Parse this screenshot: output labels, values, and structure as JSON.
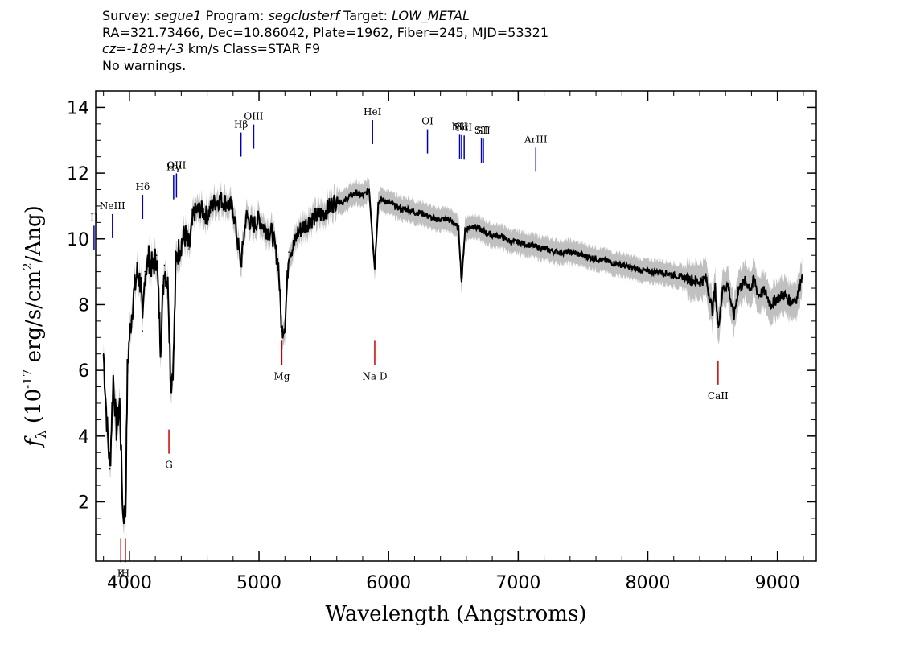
{
  "header": {
    "survey_label": "Survey:",
    "survey": "segue1",
    "program_label": "Program:",
    "program": "segclusterf",
    "target_label": "Target:",
    "target": "LOW_METAL",
    "line2": "RA=321.73466, Dec=10.86042, Plate=1962, Fiber=245, MJD=53321",
    "cz_label": "cz=",
    "cz_value": "-189+/-3",
    "cz_rest": " km/s Class=STAR F9",
    "line4": "No warnings."
  },
  "chart_data": {
    "type": "line",
    "xlabel": "Wavelength (Angstroms)",
    "ylabel_main": "f",
    "ylabel_sub": "λ",
    "ylabel_rest": " (10",
    "ylabel_exp": "-17",
    "ylabel_units": " erg/s/cm",
    "ylabel_exp2": "2",
    "ylabel_tail": "/Ang)",
    "xlim": [
      3740,
      9300
    ],
    "ylim": [
      0.2,
      14.5
    ],
    "xticks": [
      4000,
      5000,
      6000,
      7000,
      8000,
      9000
    ],
    "xtick_labels": [
      "4000",
      "5000",
      "6000",
      "7000",
      "8000",
      "9000"
    ],
    "yticks": [
      2,
      4,
      6,
      8,
      10,
      12,
      14
    ],
    "ytick_labels": [
      "2",
      "4",
      "6",
      "8",
      "10",
      "12",
      "14"
    ],
    "series": [
      {
        "color": "#000000",
        "points": [
          [
            3800,
            6.5
          ],
          [
            3825,
            4.5
          ],
          [
            3850,
            3.0
          ],
          [
            3875,
            5.8
          ],
          [
            3900,
            4.2
          ],
          [
            3925,
            5.0
          ],
          [
            3950,
            1.6
          ],
          [
            3970,
            1.7
          ],
          [
            3985,
            6.0
          ],
          [
            4000,
            7.0
          ],
          [
            4030,
            8.2
          ],
          [
            4060,
            9.0
          ],
          [
            4090,
            8.6
          ],
          [
            4101,
            7.2
          ],
          [
            4120,
            9.0
          ],
          [
            4150,
            9.4
          ],
          [
            4180,
            9.1
          ],
          [
            4210,
            9.5
          ],
          [
            4240,
            6.8
          ],
          [
            4270,
            9.2
          ],
          [
            4300,
            8.5
          ],
          [
            4320,
            5.5
          ],
          [
            4340,
            6.3
          ],
          [
            4360,
            9.4
          ],
          [
            4400,
            9.9
          ],
          [
            4430,
            10.1
          ],
          [
            4460,
            9.7
          ],
          [
            4500,
            10.8
          ],
          [
            4550,
            10.9
          ],
          [
            4600,
            10.7
          ],
          [
            4650,
            11.1
          ],
          [
            4700,
            11.2
          ],
          [
            4750,
            11.1
          ],
          [
            4800,
            10.9
          ],
          [
            4861,
            9.2
          ],
          [
            4900,
            10.7
          ],
          [
            4950,
            10.4
          ],
          [
            5000,
            10.6
          ],
          [
            5050,
            10.3
          ],
          [
            5100,
            10.2
          ],
          [
            5150,
            9.2
          ],
          [
            5175,
            7.2
          ],
          [
            5200,
            7.4
          ],
          [
            5230,
            9.6
          ],
          [
            5270,
            9.8
          ],
          [
            5300,
            10.2
          ],
          [
            5350,
            10.4
          ],
          [
            5400,
            10.6
          ],
          [
            5450,
            10.7
          ],
          [
            5500,
            10.8
          ],
          [
            5550,
            11.0
          ],
          [
            5577,
            11.1
          ],
          [
            5600,
            11.2
          ],
          [
            5650,
            11.1
          ],
          [
            5700,
            11.3
          ],
          [
            5750,
            11.4
          ],
          [
            5800,
            11.3
          ],
          [
            5850,
            11.5
          ],
          [
            5893,
            9.1
          ],
          [
            5920,
            11.1
          ],
          [
            5950,
            11.2
          ],
          [
            6000,
            11.1
          ],
          [
            6050,
            11.0
          ],
          [
            6100,
            10.9
          ],
          [
            6150,
            10.9
          ],
          [
            6200,
            10.8
          ],
          [
            6250,
            10.8
          ],
          [
            6300,
            10.7
          ],
          [
            6350,
            10.6
          ],
          [
            6400,
            10.6
          ],
          [
            6450,
            10.6
          ],
          [
            6500,
            10.5
          ],
          [
            6540,
            10.3
          ],
          [
            6563,
            8.7
          ],
          [
            6590,
            10.3
          ],
          [
            6650,
            10.4
          ],
          [
            6700,
            10.3
          ],
          [
            6750,
            10.2
          ],
          [
            6800,
            10.1
          ],
          [
            6850,
            10.1
          ],
          [
            6900,
            10.0
          ],
          [
            6950,
            9.9
          ],
          [
            7000,
            9.9
          ],
          [
            7100,
            9.8
          ],
          [
            7200,
            9.7
          ],
          [
            7300,
            9.6
          ],
          [
            7400,
            9.6
          ],
          [
            7500,
            9.5
          ],
          [
            7600,
            9.4
          ],
          [
            7700,
            9.3
          ],
          [
            7800,
            9.2
          ],
          [
            7900,
            9.1
          ],
          [
            8000,
            9.0
          ],
          [
            8100,
            9.0
          ],
          [
            8200,
            8.9
          ],
          [
            8300,
            8.8
          ],
          [
            8400,
            8.7
          ],
          [
            8450,
            8.8
          ],
          [
            8498,
            7.8
          ],
          [
            8520,
            8.5
          ],
          [
            8542,
            7.3
          ],
          [
            8580,
            8.5
          ],
          [
            8620,
            8.6
          ],
          [
            8662,
            7.6
          ],
          [
            8700,
            8.5
          ],
          [
            8750,
            8.7
          ],
          [
            8800,
            8.5
          ],
          [
            8820,
            8.8
          ],
          [
            8850,
            8.3
          ],
          [
            8900,
            8.4
          ],
          [
            8950,
            8.0
          ],
          [
            9000,
            8.2
          ],
          [
            9050,
            8.3
          ],
          [
            9100,
            8.1
          ],
          [
            9150,
            8.2
          ],
          [
            9190,
            8.9
          ]
        ]
      }
    ],
    "line_markers": [
      {
        "label": "NeIII",
        "wavelength": 3869,
        "color": "#0000bb",
        "kind": "emission"
      },
      {
        "label": "II",
        "wavelength": 3727,
        "color": "#0000bb",
        "kind": "emission"
      },
      {
        "label": "Hδ",
        "wavelength": 4102,
        "color": "#0000bb",
        "kind": "emission"
      },
      {
        "label": "Hγ",
        "wavelength": 4341,
        "color": "#0000bb",
        "kind": "emission"
      },
      {
        "label": "OIII",
        "wavelength": 4363,
        "color": "#0000bb",
        "kind": "emission"
      },
      {
        "label": "Hβ",
        "wavelength": 4861,
        "color": "#0000bb",
        "kind": "emission"
      },
      {
        "label": "OIII",
        "wavelength": 4959,
        "color": "#0000bb",
        "kind": "emission"
      },
      {
        "label": "HeI",
        "wavelength": 5876,
        "color": "#0000bb",
        "kind": "emission"
      },
      {
        "label": "OI",
        "wavelength": 6300,
        "color": "#0000bb",
        "kind": "emission"
      },
      {
        "label": "NII",
        "wavelength": 6548,
        "color": "#0000bb",
        "kind": "emission"
      },
      {
        "label": "Hα",
        "wavelength": 6563,
        "color": "#0000bb",
        "kind": "emission"
      },
      {
        "label": "NII",
        "wavelength": 6583,
        "color": "#0000bb",
        "kind": "emission"
      },
      {
        "label": "SII",
        "wavelength": 6716,
        "color": "#0000bb",
        "kind": "emission"
      },
      {
        "label": "SII",
        "wavelength": 6731,
        "color": "#0000bb",
        "kind": "emission"
      },
      {
        "label": "ArIII",
        "wavelength": 7136,
        "color": "#0000bb",
        "kind": "emission"
      },
      {
        "label": "K",
        "wavelength": 3934,
        "color": "#cc0000",
        "kind": "absorption"
      },
      {
        "label": "H",
        "wavelength": 3969,
        "color": "#cc0000",
        "kind": "absorption"
      },
      {
        "label": "G",
        "wavelength": 4305,
        "color": "#cc0000",
        "kind": "absorption"
      },
      {
        "label": "Mg",
        "wavelength": 5176,
        "color": "#cc0000",
        "kind": "absorption"
      },
      {
        "label": "Na D",
        "wavelength": 5893,
        "color": "#cc0000",
        "kind": "absorption"
      },
      {
        "label": "CaII",
        "wavelength": 8542,
        "color": "#cc0000",
        "kind": "absorption"
      }
    ],
    "colors": {
      "spectrum": "#000000",
      "error_band": "#c0c0c0",
      "emission": "#0000bb",
      "absorption": "#cc0000"
    }
  }
}
